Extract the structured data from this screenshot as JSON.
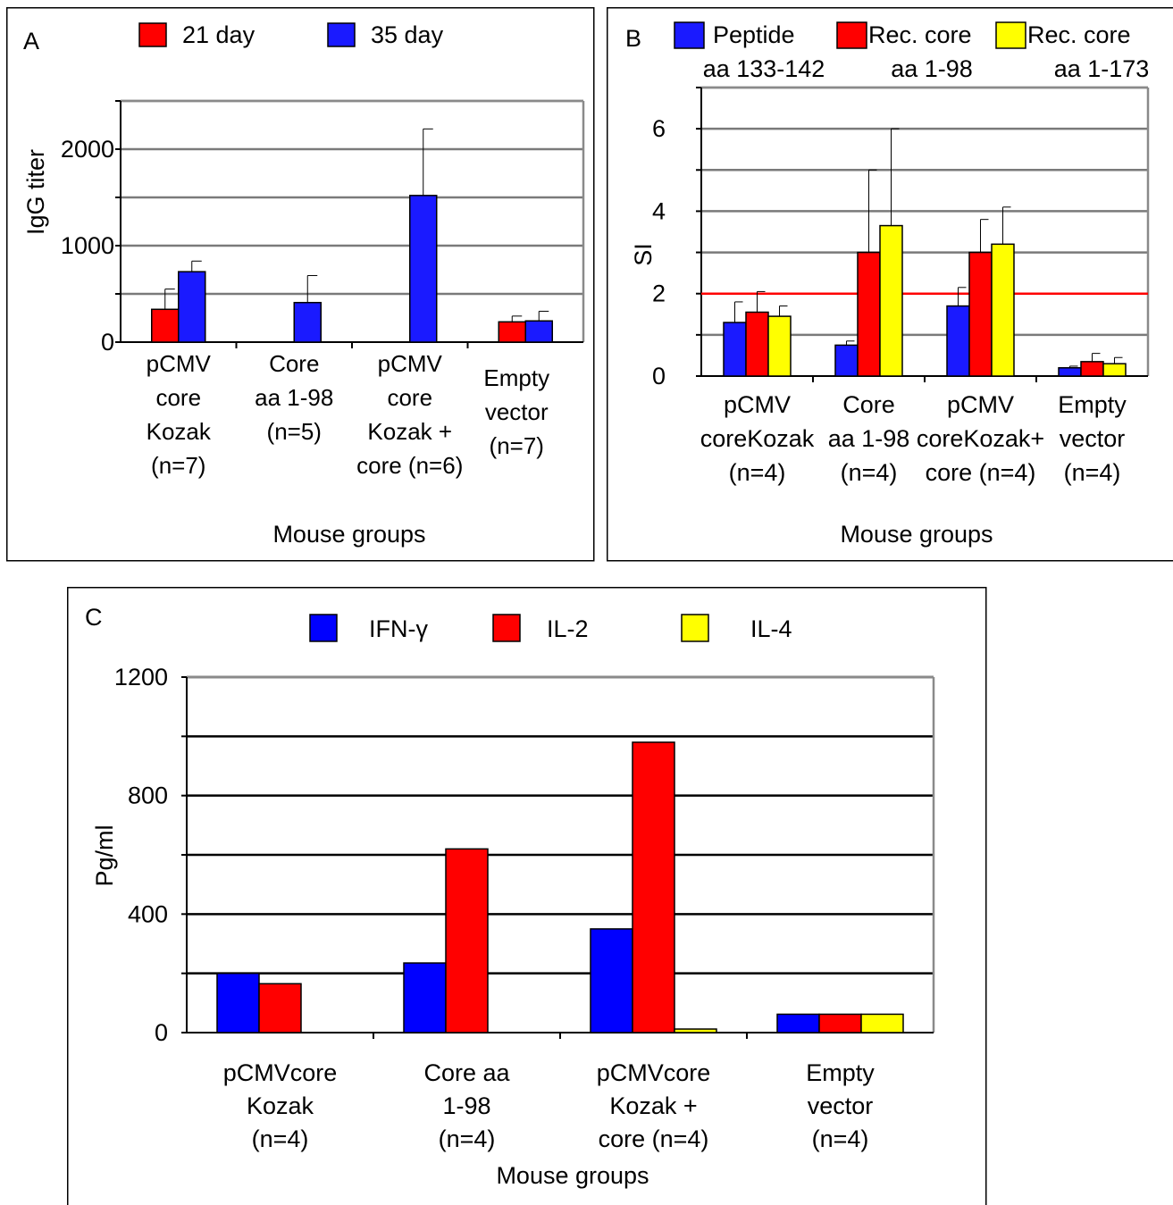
{
  "chart_data": [
    {
      "type": "bar",
      "panel_label": "A",
      "ylabel": "IgG titer",
      "xlabel": "Mouse groups",
      "ylim": [
        0,
        2500
      ],
      "yticks": [
        0,
        1000,
        2000
      ],
      "grid": true,
      "legend_position": "top",
      "categories": [
        [
          "pCMV",
          "core",
          "Kozak",
          "(n=7)"
        ],
        [
          "Core",
          "aa 1-98",
          "(n=5)"
        ],
        [
          "pCMV",
          "core",
          "Kozak +",
          "core (n=6)"
        ],
        [
          "Empty",
          "vector",
          "(n=7)"
        ]
      ],
      "series": [
        {
          "name": "21 day",
          "color": "#ff0000",
          "values": [
            340,
            0,
            0,
            210
          ],
          "errors": [
            210,
            0,
            0,
            60
          ]
        },
        {
          "name": "35 day",
          "color": "#1a1aff",
          "values": [
            730,
            410,
            1520,
            220
          ],
          "errors": [
            110,
            280,
            690,
            100
          ]
        }
      ]
    },
    {
      "type": "bar",
      "panel_label": "B",
      "ylabel": "SI",
      "xlabel": "Mouse groups",
      "ylim": [
        0,
        7
      ],
      "yticks": [
        0,
        2,
        4,
        6
      ],
      "grid": true,
      "legend_position": "top",
      "reference_line": {
        "value": 2,
        "color": "#ff0000"
      },
      "categories": [
        [
          "pCMV",
          "coreKozak",
          "(n=4)"
        ],
        [
          "Core",
          "aa 1-98",
          "(n=4)"
        ],
        [
          "pCMV",
          "coreKozak+",
          "core (n=4)"
        ],
        [
          "Empty",
          "vector",
          "(n=4)"
        ]
      ],
      "series": [
        {
          "name": [
            "Peptide",
            "aa 133-142"
          ],
          "color": "#1a1aff",
          "values": [
            1.3,
            0.75,
            1.7,
            0.2
          ],
          "errors": [
            0.5,
            0.1,
            0.45,
            0.04
          ]
        },
        {
          "name": [
            "Rec. core",
            "aa 1-98"
          ],
          "color": "#ff0000",
          "values": [
            1.55,
            3.0,
            3.0,
            0.35
          ],
          "errors": [
            0.5,
            2.0,
            0.8,
            0.2
          ]
        },
        {
          "name": [
            "Rec. core",
            "aa 1-173"
          ],
          "color": "#ffff00",
          "values": [
            1.45,
            3.65,
            3.2,
            0.3
          ],
          "errors": [
            0.25,
            2.35,
            0.9,
            0.15
          ]
        }
      ]
    },
    {
      "type": "bar",
      "panel_label": "C",
      "ylabel": "Pg/ml",
      "xlabel": "Mouse groups",
      "ylim": [
        0,
        1200
      ],
      "yticks": [
        0,
        400,
        800,
        1200
      ],
      "grid": true,
      "legend_position": "top",
      "categories": [
        [
          "pCMVcore",
          "Kozak",
          "(n=4)"
        ],
        [
          "Core aa",
          "1-98",
          "(n=4)"
        ],
        [
          "pCMVcore",
          "Kozak +",
          "core (n=4)"
        ],
        [
          "Empty",
          "vector",
          "(n=4)"
        ]
      ],
      "series": [
        {
          "name": "IFN-γ",
          "color": "#0000ff",
          "values": [
            200,
            235,
            350,
            62
          ]
        },
        {
          "name": "IL-2",
          "color": "#ff0000",
          "values": [
            165,
            620,
            980,
            62
          ]
        },
        {
          "name": "IL-4",
          "color": "#ffff00",
          "values": [
            0,
            0,
            12,
            62
          ]
        }
      ]
    }
  ]
}
